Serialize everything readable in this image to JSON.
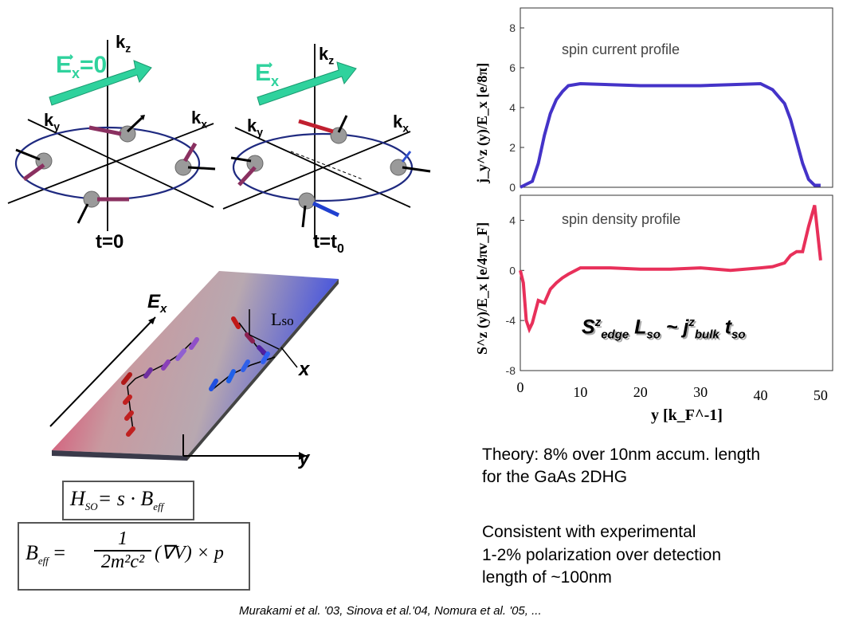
{
  "panel_a": {
    "kz_label": "k",
    "kz_sub": "z",
    "kx_label": "k",
    "kx_sub": "x",
    "ky_label": "k",
    "ky_sub": "y",
    "field_label": "E",
    "field_sub": "x",
    "field_value": "=0",
    "time_label": "t=0"
  },
  "panel_b": {
    "kz_label": "k",
    "kz_sub": "z",
    "kx_label": "k",
    "kx_sub": "x",
    "ky_label": "k",
    "ky_sub": "y",
    "field_label": "E",
    "field_sub": "x",
    "time_label": "t=t",
    "time_sub": "0"
  },
  "strip": {
    "field_label": "E",
    "field_sub": "x",
    "lso_label": "L",
    "lso_sub": "so",
    "x_axis_label": "x",
    "y_axis_label": "y"
  },
  "formulas": {
    "hso": "H",
    "hso_sub": "SO",
    "hso_rhs": "= s · B",
    "hso_rhs_sub": "eff",
    "beff_lhs": "B",
    "beff_lhs_sub": "eff",
    "beff_num": "1",
    "beff_den": "2m²c²",
    "beff_rest": "(∇V) × p",
    "beff_eq": "="
  },
  "chart_data": [
    {
      "type": "line",
      "title": "spin current profile",
      "ylabel": "j_y^z (y)/E_x  [e/8π]",
      "y_ticks": [
        0,
        2,
        4,
        6,
        8
      ],
      "ylim": [
        0,
        9
      ],
      "xlim": [
        0,
        52
      ],
      "color": "#4433c8",
      "series": [
        {
          "x": [
            0,
            2,
            3,
            4,
            5,
            6,
            7,
            8,
            10,
            15,
            20,
            25,
            30,
            35,
            40,
            42,
            44,
            45,
            46,
            47,
            48,
            49,
            50
          ],
          "values": [
            0,
            0.3,
            1.2,
            2.6,
            3.7,
            4.4,
            4.8,
            5.1,
            5.2,
            5.15,
            5.1,
            5.1,
            5.1,
            5.15,
            5.2,
            4.9,
            4.2,
            3.4,
            2.3,
            1.2,
            0.4,
            0.1,
            0.1
          ]
        }
      ]
    },
    {
      "type": "line",
      "title": "spin density profile",
      "ylabel": "S^z (y)/E_x  [e/4πv_F]",
      "y_ticks": [
        -8,
        -4,
        0,
        4
      ],
      "ylim": [
        -8,
        6
      ],
      "xlim": [
        0,
        52
      ],
      "xlabel": "y [k_F^-1]",
      "x_ticks": [
        "0",
        "10",
        "20",
        "30",
        "40",
        "50"
      ],
      "color": "#e8305a",
      "series": [
        {
          "x": [
            0,
            0.5,
            1,
            1.5,
            2,
            3,
            4,
            5,
            6,
            7,
            8,
            10,
            15,
            20,
            25,
            30,
            35,
            40,
            42,
            44,
            45,
            46,
            47,
            48,
            49,
            50
          ],
          "values": [
            0,
            -1,
            -4,
            -4.7,
            -4.2,
            -2.4,
            -2.6,
            -1.5,
            -1.0,
            -0.6,
            -0.3,
            0.2,
            0.2,
            0.1,
            0.1,
            0.2,
            0.0,
            0.2,
            0.3,
            0.6,
            1.2,
            1.5,
            1.5,
            3.5,
            5.2,
            0.8
          ]
        }
      ]
    }
  ],
  "chart_annotation": {
    "text_s": "S",
    "text_s_sup": "z",
    "text_s_sub": "edge",
    "text_l": " L",
    "text_l_sub": "so",
    "text_tilde": " ~ j",
    "text_j_sup": "z",
    "text_j_sub": "bulk",
    "text_t": " t",
    "text_t_sub": "so"
  },
  "text_block": {
    "line1": "Theory: 8% over 10nm accum. length",
    "line2": "for the GaAs 2DHG",
    "line3": "Consistent with experimental",
    "line4": "1-2% polarization over detection",
    "line5": "length of ~100nm"
  },
  "citation": "Murakami et al. '03, Sinova et al.'04, Nomura et al. '05, ..."
}
